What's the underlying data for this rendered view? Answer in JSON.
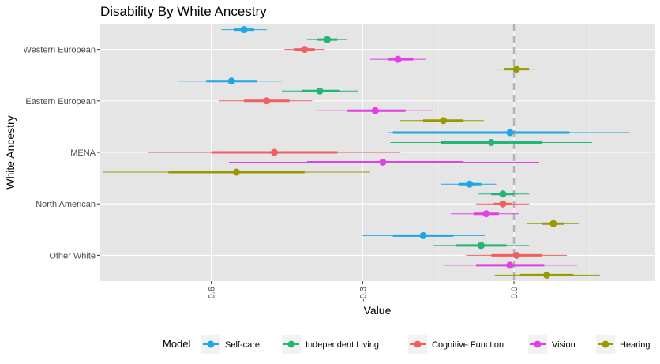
{
  "chart_data": {
    "type": "forest",
    "title": "Disability By White Ancestry",
    "xlabel": "Value",
    "ylabel": "White Ancestry",
    "xlim": [
      -0.82,
      0.28
    ],
    "xticks": [
      {
        "value": -0.6,
        "label": "-0.6"
      },
      {
        "value": -0.3,
        "label": "-0.3"
      },
      {
        "value": 0.0,
        "label": "0.0"
      }
    ],
    "reference_line": 0,
    "grid": true,
    "legend": {
      "title": "Model",
      "position": "bottom"
    },
    "categories": [
      "Western European",
      "Eastern European",
      "MENA",
      "North American",
      "Other White"
    ],
    "series": [
      {
        "name": "Self-care",
        "color": "#1fa6e6",
        "points": [
          {
            "category": "Western European",
            "estimate": -0.535,
            "inner": [
              -0.555,
              -0.515
            ],
            "outer": [
              -0.58,
              -0.49
            ]
          },
          {
            "category": "Eastern European",
            "estimate": -0.56,
            "inner": [
              -0.61,
              -0.51
            ],
            "outer": [
              -0.665,
              -0.46
            ]
          },
          {
            "category": "MENA",
            "estimate": -0.008,
            "inner": [
              -0.24,
              0.11
            ],
            "outer": [
              -0.25,
              0.23
            ]
          },
          {
            "category": "North American",
            "estimate": -0.088,
            "inner": [
              -0.11,
              -0.065
            ],
            "outer": [
              -0.145,
              -0.035
            ]
          },
          {
            "category": "Other White",
            "estimate": -0.18,
            "inner": [
              -0.24,
              -0.12
            ],
            "outer": [
              -0.3,
              -0.058
            ]
          }
        ]
      },
      {
        "name": "Independent Living",
        "color": "#22b573",
        "points": [
          {
            "category": "Western European",
            "estimate": -0.37,
            "inner": [
              -0.39,
              -0.35
            ],
            "outer": [
              -0.41,
              -0.33
            ]
          },
          {
            "category": "Eastern European",
            "estimate": -0.385,
            "inner": [
              -0.42,
              -0.345
            ],
            "outer": [
              -0.46,
              -0.31
            ]
          },
          {
            "category": "MENA",
            "estimate": -0.045,
            "inner": [
              -0.145,
              0.055
            ],
            "outer": [
              -0.245,
              0.155
            ]
          },
          {
            "category": "North American",
            "estimate": -0.022,
            "inner": [
              -0.045,
              0.0
            ],
            "outer": [
              -0.07,
              0.03
            ]
          },
          {
            "category": "Other White",
            "estimate": -0.065,
            "inner": [
              -0.115,
              -0.015
            ],
            "outer": [
              -0.16,
              0.03
            ]
          }
        ]
      },
      {
        "name": "Cognitive Function",
        "color": "#f06060",
        "points": [
          {
            "category": "Western European",
            "estimate": -0.415,
            "inner": [
              -0.435,
              -0.395
            ],
            "outer": [
              -0.455,
              -0.375
            ]
          },
          {
            "category": "Eastern European",
            "estimate": -0.49,
            "inner": [
              -0.535,
              -0.445
            ],
            "outer": [
              -0.585,
              -0.4
            ]
          },
          {
            "category": "MENA",
            "estimate": -0.475,
            "inner": [
              -0.6,
              -0.35
            ],
            "outer": [
              -0.725,
              -0.225
            ]
          },
          {
            "category": "North American",
            "estimate": -0.022,
            "inner": [
              -0.04,
              -0.005
            ],
            "outer": [
              -0.075,
              0.03
            ]
          },
          {
            "category": "Other White",
            "estimate": 0.005,
            "inner": [
              -0.045,
              0.055
            ],
            "outer": [
              -0.095,
              0.105
            ]
          }
        ]
      },
      {
        "name": "Vision",
        "color": "#e040e6",
        "points": [
          {
            "category": "Western European",
            "estimate": -0.23,
            "inner": [
              -0.25,
              -0.2
            ],
            "outer": [
              -0.285,
              -0.175
            ]
          },
          {
            "category": "Eastern European",
            "estimate": -0.275,
            "inner": [
              -0.33,
              -0.215
            ],
            "outer": [
              -0.39,
              -0.16
            ]
          },
          {
            "category": "MENA",
            "estimate": -0.26,
            "inner": [
              -0.41,
              -0.1
            ],
            "outer": [
              -0.565,
              0.05
            ]
          },
          {
            "category": "North American",
            "estimate": -0.055,
            "inner": [
              -0.08,
              -0.03
            ],
            "outer": [
              -0.125,
              0.01
            ]
          },
          {
            "category": "Other White",
            "estimate": -0.008,
            "inner": [
              -0.075,
              0.06
            ],
            "outer": [
              -0.14,
              0.125
            ]
          }
        ]
      },
      {
        "name": "Hearing",
        "color": "#999900",
        "points": [
          {
            "category": "Western European",
            "estimate": 0.005,
            "inner": [
              -0.02,
              0.03
            ],
            "outer": [
              -0.035,
              0.045
            ]
          },
          {
            "category": "Eastern European",
            "estimate": -0.14,
            "inner": [
              -0.18,
              -0.1
            ],
            "outer": [
              -0.225,
              -0.06
            ]
          },
          {
            "category": "MENA",
            "estimate": -0.55,
            "inner": [
              -0.685,
              -0.415
            ],
            "outer": [
              -0.815,
              -0.285
            ]
          },
          {
            "category": "North American",
            "estimate": 0.078,
            "inner": [
              0.055,
              0.1
            ],
            "outer": [
              0.025,
              0.13
            ]
          },
          {
            "category": "Other White",
            "estimate": 0.065,
            "inner": [
              0.012,
              0.118
            ],
            "outer": [
              -0.038,
              0.17
            ]
          }
        ]
      }
    ]
  }
}
